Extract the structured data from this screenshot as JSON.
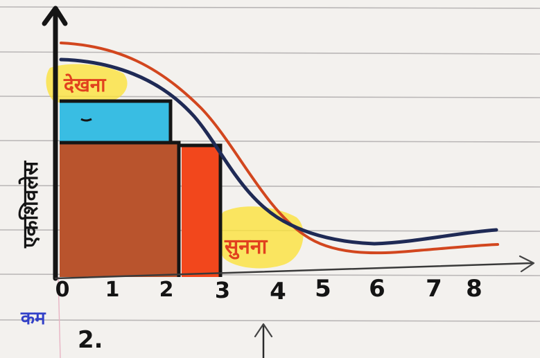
{
  "texts": {
    "y_axis_label": "एकशिवलेस",
    "x_axis_label": "कम",
    "label_dekhna": "देखना",
    "label_sunna": "सुनना",
    "figure_number": "2."
  },
  "x_ticks": [
    "0",
    "1",
    "2",
    "3",
    "4",
    "5",
    "6",
    "7",
    "8"
  ],
  "colors": {
    "ink": "#151515",
    "blue_curve": "#1f2a55",
    "orange_curve": "#d2461e",
    "brown_fill": "#b9542d",
    "cyan_fill": "#39bde3",
    "red_orange_fill": "#f2471c",
    "yellow_highlight": "#fbe23c",
    "label_red": "#e1401e",
    "label_blue": "#3240c8"
  }
}
